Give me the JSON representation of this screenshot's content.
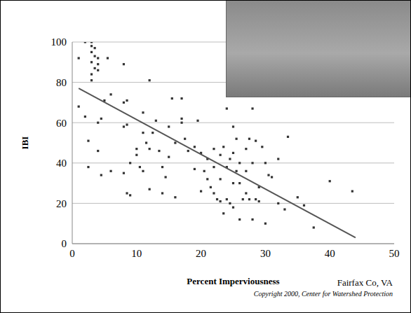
{
  "chart_data": {
    "type": "scatter",
    "x_label": "Percent Imperviousness",
    "y_label": "IBI",
    "annotations": [
      "Fairfax Co, VA",
      "Copyright 2000, Center for Watershed Protection"
    ],
    "x": [
      2,
      3,
      3,
      3.5,
      3,
      3.5,
      4,
      3,
      4,
      3.5,
      4,
      3,
      3,
      1,
      5.5,
      1,
      2,
      2.5,
      2.5,
      4,
      4.5,
      4,
      4.5,
      5,
      6,
      8,
      8,
      8.5,
      8,
      8.5,
      8,
      8.5,
      9,
      9,
      10,
      10.5,
      11,
      11,
      11.5,
      12,
      12,
      12.5,
      12,
      13,
      13.5,
      14,
      14.5,
      14,
      15,
      15.5,
      16,
      16,
      17,
      17,
      17,
      17.5,
      18,
      19,
      19.5,
      20,
      20.5,
      21,
      21,
      21.5,
      22,
      22,
      22,
      22.5,
      23,
      23,
      23,
      23.5,
      23.5,
      24,
      24,
      24,
      24.5,
      24.5,
      25,
      25,
      25,
      25,
      25.5,
      25.5,
      26,
      26,
      26,
      26.5,
      27,
      27,
      27,
      27.5,
      27.5,
      28,
      28,
      28,
      28.5,
      28.5,
      29,
      29,
      29.5,
      30,
      30,
      30.5,
      31,
      32,
      32,
      33,
      33.5,
      35,
      36,
      37.5,
      40,
      43.5,
      6,
      10,
      11,
      15,
      19,
      20
    ],
    "values": [
      100,
      100,
      98,
      97,
      95,
      93,
      92,
      90,
      89,
      87,
      86,
      84,
      81,
      92,
      92,
      68,
      63,
      51,
      38,
      60,
      62,
      46,
      34,
      71,
      74,
      89,
      70,
      71,
      58,
      59,
      35,
      25,
      24,
      40,
      47,
      38,
      65,
      55,
      50,
      47,
      81,
      55,
      27,
      61,
      46,
      38,
      33,
      25,
      43,
      72,
      50,
      23,
      72,
      62,
      60,
      52,
      46,
      48,
      61,
      45,
      36,
      42,
      32,
      28,
      47,
      38,
      25,
      22,
      44,
      32,
      21,
      48,
      15,
      67,
      38,
      22,
      42,
      20,
      58,
      45,
      30,
      18,
      52,
      36,
      40,
      30,
      12,
      22,
      47,
      36,
      25,
      52,
      22,
      67,
      40,
      12,
      51,
      22,
      28,
      21,
      48,
      40,
      10,
      34,
      33,
      42,
      20,
      17,
      53,
      23,
      19,
      8,
      31,
      26,
      36,
      44,
      36,
      58,
      37,
      26
    ],
    "color": "#333333",
    "marker": "square",
    "trend_line": {
      "x": [
        1,
        44
      ],
      "y": [
        77,
        3
      ]
    },
    "xlim": [
      0,
      50
    ],
    "xticks": [
      0,
      10,
      20,
      30,
      40,
      50
    ],
    "ylim": [
      0,
      100
    ],
    "yticks": [
      0,
      20,
      40,
      60,
      80,
      100
    ],
    "grid": true
  }
}
